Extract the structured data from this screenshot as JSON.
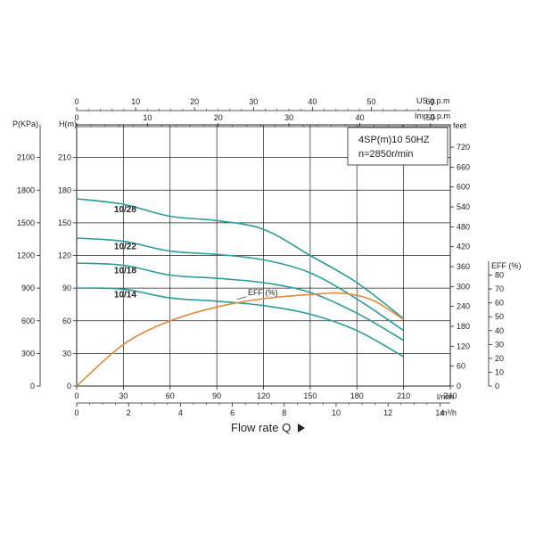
{
  "chart_data": {
    "type": "line",
    "model_line_1": "4SP(m)10  50HZ",
    "model_line_2": "n=2850r/min",
    "xlabel": "Flow rate Q",
    "x_axes": {
      "us_gpm": {
        "unit": "US g.p.m",
        "ticks": [
          "0",
          "10",
          "20",
          "30",
          "40",
          "50",
          "60"
        ]
      },
      "imp_gpm": {
        "unit": "Imp g.p.m",
        "ticks": [
          "0",
          "10",
          "20",
          "30",
          "40",
          "50"
        ]
      },
      "lmin": {
        "unit": "l/min",
        "ticks": [
          "0",
          "30",
          "60",
          "90",
          "120",
          "150",
          "180",
          "210",
          "240"
        ]
      },
      "m3h": {
        "unit": "m³/h",
        "ticks": [
          "0",
          "2",
          "4",
          "6",
          "8",
          "10",
          "12",
          "14"
        ]
      }
    },
    "y_axes": {
      "pressure": {
        "unit": "P(KPa)",
        "ticks": [
          "0",
          "300",
          "600",
          "900",
          "1200",
          "1500",
          "1800",
          "2100"
        ]
      },
      "head": {
        "unit": "H(m)",
        "ticks": [
          "0",
          "30",
          "60",
          "90",
          "120",
          "150",
          "180",
          "210"
        ]
      },
      "feet": {
        "unit": "feet",
        "ticks": [
          "0",
          "60",
          "120",
          "180",
          "240",
          "300",
          "360",
          "420",
          "480",
          "540",
          "600",
          "660",
          "720"
        ]
      },
      "eff": {
        "unit": "EFF (%)",
        "ticks": [
          "0",
          "10",
          "20",
          "30",
          "40",
          "50",
          "60",
          "70",
          "80"
        ]
      }
    },
    "xlim": [
      0,
      240
    ],
    "ylim": [
      0,
      240
    ],
    "eff_lim": [
      0,
      90
    ],
    "series": [
      {
        "name": "10/28",
        "color": "#2a9d9a",
        "x": [
          0,
          30,
          60,
          90,
          120,
          150,
          180,
          210
        ],
        "y": [
          172,
          167,
          156,
          152,
          144,
          120,
          95,
          62
        ]
      },
      {
        "name": "10/22",
        "color": "#2a9d9a",
        "x": [
          0,
          30,
          60,
          90,
          120,
          150,
          180,
          210
        ],
        "y": [
          136,
          133,
          124,
          121,
          116,
          104,
          80,
          51
        ]
      },
      {
        "name": "10/18",
        "color": "#2a9d9a",
        "x": [
          0,
          30,
          60,
          90,
          120,
          150,
          180,
          210
        ],
        "y": [
          113,
          111,
          102,
          99,
          95,
          86,
          67,
          42
        ]
      },
      {
        "name": "10/14",
        "color": "#2a9d9a",
        "x": [
          0,
          30,
          60,
          90,
          120,
          150,
          180,
          210
        ],
        "y": [
          90,
          89,
          81,
          78,
          74,
          66,
          51,
          27
        ]
      }
    ],
    "efficiency": {
      "name": "EFF (%)",
      "color": "#e08a3c",
      "x": [
        0,
        30,
        60,
        90,
        120,
        150,
        170,
        190,
        210
      ],
      "y": [
        0,
        30,
        47,
        57,
        63,
        66,
        67,
        62,
        48
      ]
    }
  }
}
